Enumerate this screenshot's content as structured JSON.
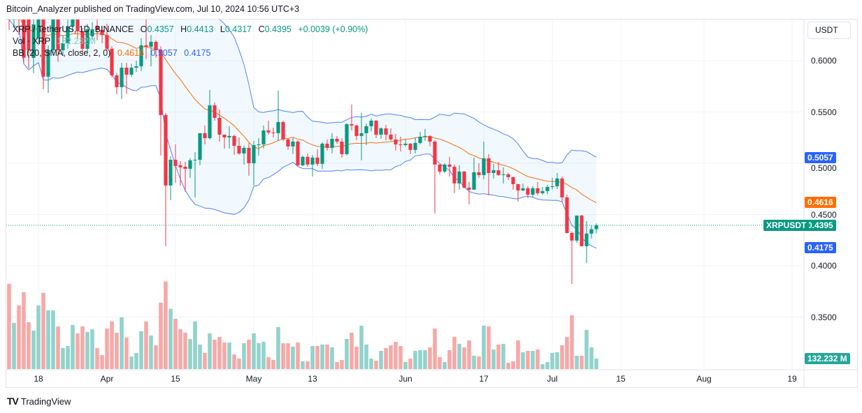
{
  "header": {
    "publisher_line": "Bitcoin_Analyzer published on TradingView.com, Jul 10, 2024 10:56 UTC+3"
  },
  "legend": {
    "symbol": "XRP / TetherUS, 1D, BINANCE",
    "o_label": "O",
    "o": "0.4357",
    "h_label": "H",
    "h": "0.4413",
    "l_label": "L",
    "l": "0.4317",
    "c_label": "C",
    "c": "0.4395",
    "change": "+0.0039 (+0.90%)",
    "vol_label": "Vol · XRP",
    "vol": "132.232M",
    "bb_label": "BB (20, SMA, close, 2, 0)",
    "bb_basis": "0.4616",
    "bb_upper": "0.5057",
    "bb_lower": "0.4175"
  },
  "price_axis": {
    "currency": "USDT",
    "ticks": [
      "0.6000",
      "0.5500",
      "0.5000",
      "0.4500",
      "0.4000",
      "0.3500"
    ],
    "symbol_tag": "XRPUSDT",
    "markers": [
      {
        "value": "0.5057",
        "color": "#2962ff"
      },
      {
        "value": "0.4616",
        "color": "#ff6d00"
      },
      {
        "value": "0.4395",
        "color": "#089981"
      },
      {
        "value": "0.4175",
        "color": "#2962ff"
      }
    ],
    "volume_marker": {
      "label": "132.232 M",
      "value": 132.232,
      "color": "#26a69a"
    }
  },
  "footer": {
    "brand": "TradingView"
  },
  "colors": {
    "up": "#089981",
    "down": "#f23645",
    "bb_band": "#2962ff",
    "bb_basis": "#ff6d00",
    "vol_up": "#92d2cc",
    "vol_down": "#f7a9a7"
  },
  "chart_data": {
    "type": "candlestick",
    "symbol": "XRP / TetherUS",
    "interval": "1D",
    "exchange": "BINANCE",
    "price_unit": "USDT",
    "volume_unit": "M XRP",
    "ylim": [
      0.33,
      0.64
    ],
    "grid": true,
    "indicators": [
      {
        "name": "BB (20, SMA, close, 2, 0)",
        "length": 20,
        "mult": 2
      }
    ],
    "x_ticks": [
      {
        "label": "18",
        "date": "2024-03-18"
      },
      {
        "label": "Apr",
        "date": "2024-04-01"
      },
      {
        "label": "15",
        "date": "2024-04-15"
      },
      {
        "label": "May",
        "date": "2024-05-01"
      },
      {
        "label": "13",
        "date": "2024-05-13"
      },
      {
        "label": "Jun",
        "date": "2024-06-01"
      },
      {
        "label": "17",
        "date": "2024-06-17"
      },
      {
        "label": "Jul",
        "date": "2024-07-01"
      },
      {
        "label": "15",
        "date": "2024-07-15"
      },
      {
        "label": "Aug",
        "date": "2024-08-01"
      },
      {
        "label": "19",
        "date": "2024-08-19"
      }
    ],
    "columns": [
      "date",
      "open",
      "high",
      "low",
      "close",
      "volume"
    ],
    "candles": [
      [
        "2024-03-12",
        0.655,
        0.67,
        0.63,
        0.64,
        1076
      ],
      [
        "2024-03-13",
        0.64,
        0.665,
        0.632,
        0.652,
        582
      ],
      [
        "2024-03-14",
        0.652,
        0.668,
        0.625,
        0.64,
        803
      ],
      [
        "2024-03-15",
        0.64,
        0.65,
        0.597,
        0.603,
        970
      ],
      [
        "2024-03-16",
        0.645,
        0.655,
        0.5925,
        0.61,
        591
      ],
      [
        "2024-03-17",
        0.6027,
        0.645,
        0.5878,
        0.6354,
        485
      ],
      [
        "2024-03-18",
        0.6218,
        0.66,
        0.615,
        0.645,
        803
      ],
      [
        "2024-03-19",
        0.645,
        0.655,
        0.5721,
        0.5844,
        961
      ],
      [
        "2024-03-20",
        0.5844,
        0.615,
        0.5687,
        0.6102,
        741
      ],
      [
        "2024-03-21",
        0.6102,
        0.655,
        0.605,
        0.645,
        741
      ],
      [
        "2024-03-22",
        0.645,
        0.655,
        0.599,
        0.6102,
        538
      ],
      [
        "2024-03-23",
        0.6102,
        0.625,
        0.605,
        0.617,
        265
      ],
      [
        "2024-03-24",
        0.617,
        0.64,
        0.612,
        0.6333,
        291
      ],
      [
        "2024-03-25",
        0.6333,
        0.655,
        0.628,
        0.6422,
        556
      ],
      [
        "2024-03-26",
        0.6422,
        0.65,
        0.622,
        0.6286,
        450
      ],
      [
        "2024-03-27",
        0.6286,
        0.632,
        0.606,
        0.6116,
        538
      ],
      [
        "2024-03-28",
        0.6116,
        0.636,
        0.607,
        0.6306,
        467
      ],
      [
        "2024-03-29",
        0.6238,
        0.6375,
        0.62,
        0.6306,
        503
      ],
      [
        "2024-03-30",
        0.6333,
        0.64,
        0.62,
        0.6299,
        265
      ],
      [
        "2024-03-31",
        0.6299,
        0.634,
        0.617,
        0.625,
        176
      ],
      [
        "2024-04-01",
        0.625,
        0.636,
        0.608,
        0.6116,
        512
      ],
      [
        "2024-04-02",
        0.6116,
        0.614,
        0.584,
        0.5857,
        600
      ],
      [
        "2024-04-03",
        0.5857,
        0.588,
        0.5674,
        0.5742,
        459
      ],
      [
        "2024-04-04",
        0.5742,
        0.598,
        0.5626,
        0.5932,
        653
      ],
      [
        "2024-04-05",
        0.5932,
        0.598,
        0.5674,
        0.5864,
        397
      ],
      [
        "2024-04-06",
        0.5864,
        0.597,
        0.584,
        0.5932,
        159
      ],
      [
        "2024-04-07",
        0.5932,
        0.6,
        0.589,
        0.5946,
        203
      ],
      [
        "2024-04-08",
        0.5946,
        0.622,
        0.59,
        0.615,
        476
      ],
      [
        "2024-04-09",
        0.615,
        0.642,
        0.6014,
        0.6136,
        600
      ],
      [
        "2024-04-10",
        0.6136,
        0.625,
        0.5946,
        0.6184,
        423
      ],
      [
        "2024-04-11",
        0.6184,
        0.62,
        0.603,
        0.6102,
        300
      ],
      [
        "2024-04-12",
        0.6102,
        0.614,
        0.5075,
        0.547,
        838
      ],
      [
        "2024-04-13",
        0.547,
        0.549,
        0.4191,
        0.4783,
        1103
      ],
      [
        "2024-04-14",
        0.4783,
        0.5068,
        0.464,
        0.5034,
        759
      ],
      [
        "2024-04-15",
        0.5034,
        0.5184,
        0.481,
        0.4973,
        635
      ],
      [
        "2024-04-16",
        0.498,
        0.502,
        0.478,
        0.496,
        503
      ],
      [
        "2024-04-17",
        0.4966,
        0.5014,
        0.4722,
        0.4946,
        459
      ],
      [
        "2024-04-18",
        0.4946,
        0.505,
        0.4858,
        0.5028,
        379
      ],
      [
        "2024-04-19",
        0.5028,
        0.5109,
        0.4667,
        0.5034,
        600
      ],
      [
        "2024-04-20",
        0.5034,
        0.5293,
        0.498,
        0.5293,
        309
      ],
      [
        "2024-04-21",
        0.5293,
        0.5368,
        0.5184,
        0.5245,
        203
      ],
      [
        "2024-04-22",
        0.5245,
        0.5714,
        0.5232,
        0.5565,
        450
      ],
      [
        "2024-04-23",
        0.5565,
        0.5592,
        0.5415,
        0.5442,
        370
      ],
      [
        "2024-04-24",
        0.5442,
        0.5524,
        0.5211,
        0.5279,
        406
      ],
      [
        "2024-04-25",
        0.5279,
        0.528,
        0.5143,
        0.5252,
        335
      ],
      [
        "2024-04-26",
        0.5252,
        0.5361,
        0.5143,
        0.5266,
        335
      ],
      [
        "2024-04-27",
        0.5266,
        0.528,
        0.5082,
        0.517,
        185
      ],
      [
        "2024-04-28",
        0.517,
        0.5252,
        0.5082,
        0.5096,
        132
      ],
      [
        "2024-04-29",
        0.5096,
        0.517,
        0.4987,
        0.515,
        326
      ],
      [
        "2024-04-30",
        0.515,
        0.5198,
        0.4878,
        0.5,
        370
      ],
      [
        "2024-05-01",
        0.5,
        0.5218,
        0.4783,
        0.5177,
        450
      ],
      [
        "2024-05-02",
        0.5177,
        0.5245,
        0.5075,
        0.5184,
        326
      ],
      [
        "2024-05-03",
        0.5184,
        0.5368,
        0.5143,
        0.532,
        344
      ],
      [
        "2024-05-04",
        0.532,
        0.5415,
        0.5279,
        0.53,
        150
      ],
      [
        "2024-05-05",
        0.53,
        0.5347,
        0.525,
        0.5293,
        115
      ],
      [
        "2024-05-06",
        0.5293,
        0.5708,
        0.522,
        0.5402,
        529
      ],
      [
        "2024-05-07",
        0.5402,
        0.5415,
        0.5218,
        0.5232,
        326
      ],
      [
        "2024-05-08",
        0.5232,
        0.5245,
        0.513,
        0.5164,
        326
      ],
      [
        "2024-05-09",
        0.5164,
        0.5245,
        0.5089,
        0.5211,
        282
      ],
      [
        "2024-05-10",
        0.5211,
        0.5225,
        0.4966,
        0.498,
        335
      ],
      [
        "2024-05-11",
        0.498,
        0.5075,
        0.4973,
        0.5062,
        97
      ],
      [
        "2024-05-12",
        0.5062,
        0.5096,
        0.4966,
        0.4987,
        97
      ],
      [
        "2024-05-13",
        0.4987,
        0.508,
        0.4871,
        0.5055,
        291
      ],
      [
        "2024-05-14",
        0.5055,
        0.5136,
        0.4973,
        0.4994,
        291
      ],
      [
        "2024-05-15",
        0.4994,
        0.5204,
        0.4946,
        0.5191,
        309
      ],
      [
        "2024-05-16",
        0.5191,
        0.5232,
        0.5123,
        0.515,
        309
      ],
      [
        "2024-05-17",
        0.515,
        0.5293,
        0.5096,
        0.5238,
        273
      ],
      [
        "2024-05-18",
        0.5238,
        0.5266,
        0.519,
        0.5211,
        88
      ],
      [
        "2024-05-19",
        0.5211,
        0.5245,
        0.5055,
        0.5089,
        115
      ],
      [
        "2024-05-20",
        0.5089,
        0.5388,
        0.5075,
        0.5381,
        379
      ],
      [
        "2024-05-21",
        0.5381,
        0.5572,
        0.532,
        0.5368,
        459
      ],
      [
        "2024-05-22",
        0.5368,
        0.5375,
        0.5225,
        0.5266,
        282
      ],
      [
        "2024-05-23",
        0.5266,
        0.549,
        0.5028,
        0.5293,
        547
      ],
      [
        "2024-05-24",
        0.5293,
        0.5388,
        0.5177,
        0.5361,
        309
      ],
      [
        "2024-05-25",
        0.5361,
        0.5436,
        0.531,
        0.5415,
        132
      ],
      [
        "2024-05-26",
        0.5415,
        0.5422,
        0.5245,
        0.5279,
        106
      ],
      [
        "2024-05-27",
        0.5279,
        0.535,
        0.5238,
        0.534,
        229
      ],
      [
        "2024-05-28",
        0.534,
        0.5375,
        0.5225,
        0.5279,
        265
      ],
      [
        "2024-05-29",
        0.5279,
        0.534,
        0.5218,
        0.5232,
        300
      ],
      [
        "2024-05-30",
        0.5232,
        0.5286,
        0.5123,
        0.5184,
        344
      ],
      [
        "2024-05-31",
        0.5184,
        0.5259,
        0.5116,
        0.5177,
        291
      ],
      [
        "2024-06-01",
        0.5177,
        0.5232,
        0.5164,
        0.5191,
        88
      ],
      [
        "2024-06-02",
        0.5191,
        0.5198,
        0.5089,
        0.513,
        132
      ],
      [
        "2024-06-03",
        0.513,
        0.5252,
        0.5096,
        0.5198,
        229
      ],
      [
        "2024-06-04",
        0.5198,
        0.5306,
        0.5184,
        0.5259,
        238
      ],
      [
        "2024-06-05",
        0.5259,
        0.5334,
        0.5218,
        0.5266,
        238
      ],
      [
        "2024-06-06",
        0.5266,
        0.5272,
        0.5164,
        0.5211,
        273
      ],
      [
        "2024-06-07",
        0.5211,
        0.5225,
        0.4511,
        0.4987,
        512
      ],
      [
        "2024-06-08",
        0.4987,
        0.499,
        0.489,
        0.4919,
        150
      ],
      [
        "2024-06-09",
        0.4919,
        0.5,
        0.4905,
        0.4987,
        88
      ],
      [
        "2024-06-10",
        0.4987,
        0.5062,
        0.4871,
        0.4966,
        238
      ],
      [
        "2024-06-11",
        0.4966,
        0.4987,
        0.4708,
        0.4803,
        406
      ],
      [
        "2024-06-12",
        0.4803,
        0.498,
        0.4742,
        0.4919,
        318
      ],
      [
        "2024-06-13",
        0.4919,
        0.4925,
        0.4755,
        0.4762,
        273
      ],
      [
        "2024-06-14",
        0.4762,
        0.4816,
        0.46,
        0.4742,
        362
      ],
      [
        "2024-06-15",
        0.4742,
        0.5055,
        0.4742,
        0.4912,
        168
      ],
      [
        "2024-06-16",
        0.4912,
        0.5,
        0.4858,
        0.4885,
        159
      ],
      [
        "2024-06-17",
        0.4885,
        0.5211,
        0.4844,
        0.5048,
        547
      ],
      [
        "2024-06-18",
        0.5048,
        0.5089,
        0.4688,
        0.4905,
        538
      ],
      [
        "2024-06-19",
        0.4905,
        0.4994,
        0.4851,
        0.4932,
        247
      ],
      [
        "2024-06-20",
        0.4932,
        0.5014,
        0.4878,
        0.4885,
        309
      ],
      [
        "2024-06-21",
        0.4885,
        0.496,
        0.4803,
        0.4892,
        318
      ],
      [
        "2024-06-22",
        0.4892,
        0.4905,
        0.4837,
        0.4864,
        79
      ],
      [
        "2024-06-23",
        0.4864,
        0.487,
        0.4742,
        0.4796,
        97
      ],
      [
        "2024-06-24",
        0.4796,
        0.48,
        0.4626,
        0.4735,
        362
      ],
      [
        "2024-06-25",
        0.4735,
        0.4803,
        0.4728,
        0.4756,
        212
      ],
      [
        "2024-06-26",
        0.4756,
        0.4776,
        0.466,
        0.4694,
        229
      ],
      [
        "2024-06-27",
        0.4694,
        0.4776,
        0.4674,
        0.4756,
        229
      ],
      [
        "2024-06-28",
        0.4756,
        0.4816,
        0.4688,
        0.4708,
        247
      ],
      [
        "2024-06-29",
        0.4708,
        0.4769,
        0.4694,
        0.4728,
        62
      ],
      [
        "2024-06-30",
        0.4728,
        0.479,
        0.4701,
        0.4769,
        88
      ],
      [
        "2024-07-01",
        0.4769,
        0.4858,
        0.4748,
        0.4776,
        203
      ],
      [
        "2024-07-02",
        0.4776,
        0.4905,
        0.4748,
        0.4851,
        212
      ],
      [
        "2024-07-03",
        0.4851,
        0.4871,
        0.462,
        0.4667,
        300
      ],
      [
        "2024-07-04",
        0.4667,
        0.4694,
        0.4314,
        0.432,
        406
      ],
      [
        "2024-07-05",
        0.432,
        0.4334,
        0.3824,
        0.4246,
        679
      ],
      [
        "2024-07-06",
        0.4246,
        0.449,
        0.4225,
        0.449,
        168
      ],
      [
        "2024-07-07",
        0.449,
        0.4497,
        0.4191,
        0.4191,
        168
      ],
      [
        "2024-07-08",
        0.4191,
        0.4436,
        0.4028,
        0.4314,
        494
      ],
      [
        "2024-07-09",
        0.4314,
        0.4395,
        0.4266,
        0.4357,
        273
      ],
      [
        "2024-07-10",
        0.4357,
        0.4413,
        0.4317,
        0.4395,
        132.232
      ]
    ]
  }
}
